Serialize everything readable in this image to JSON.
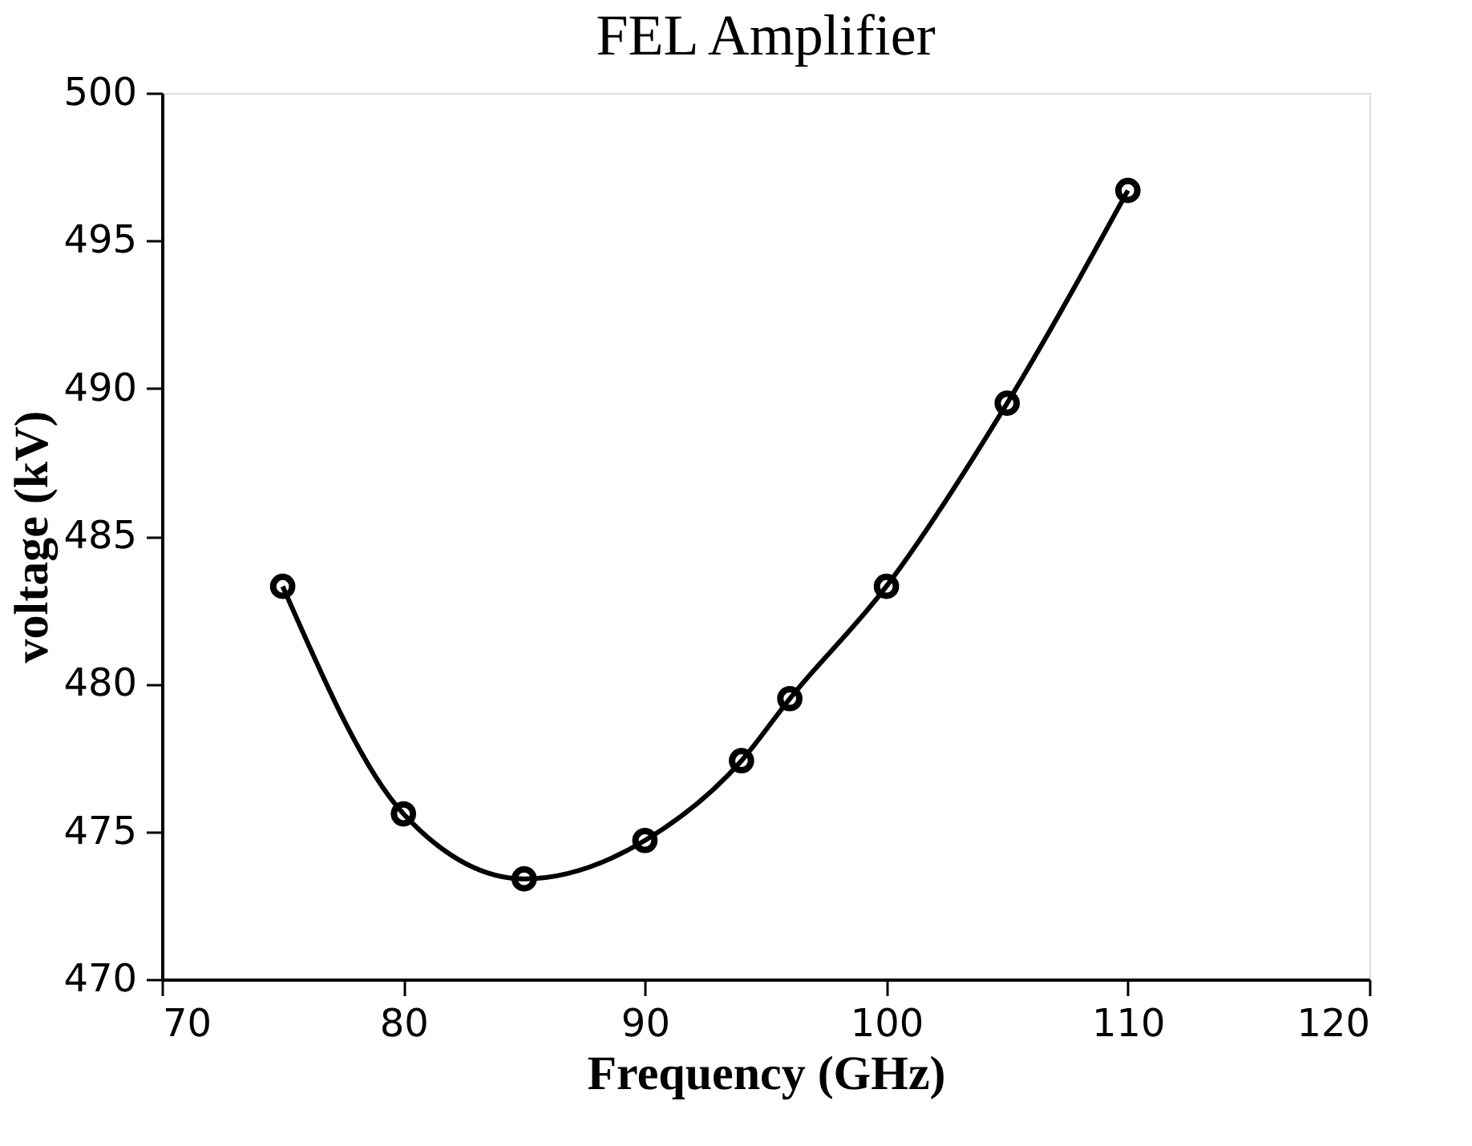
{
  "chart_data": {
    "type": "line",
    "title": "FEL Amplifier",
    "xlabel": "Frequency  (GHz)",
    "ylabel": "voltage  (kV)",
    "x": [
      75,
      80,
      85,
      90,
      94,
      96,
      100,
      105,
      110
    ],
    "series": [
      {
        "color": "#000000",
        "values": [
          483.3,
          475.6,
          473.4,
          474.7,
          477.4,
          479.5,
          483.3,
          489.5,
          496.7
        ]
      }
    ],
    "xlim": [
      70,
      120
    ],
    "xticks": [
      70,
      80,
      90,
      100,
      110,
      120
    ],
    "ylim": [
      470,
      500
    ],
    "yticks": [
      470,
      475,
      480,
      485,
      490,
      495,
      500
    ],
    "grid": false,
    "legend": false,
    "marker": "circle",
    "line_style": "solid"
  }
}
